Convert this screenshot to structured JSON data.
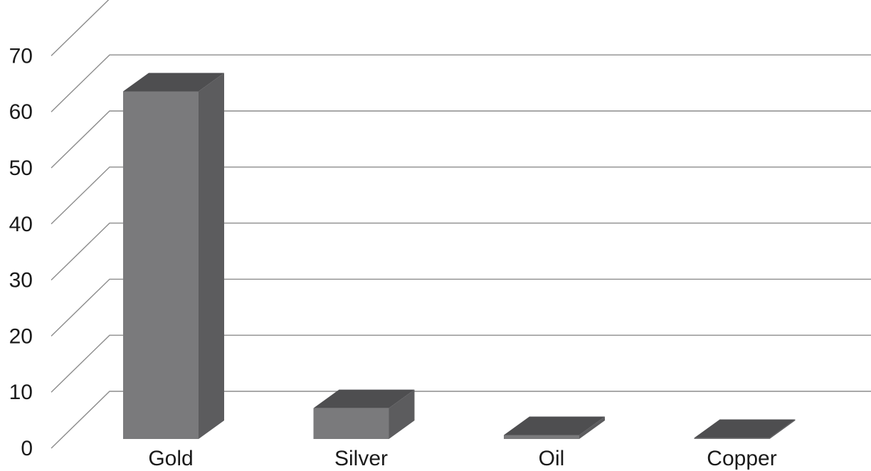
{
  "chart_data": {
    "type": "bar",
    "style": "3d",
    "categories": [
      "Gold",
      "Silver",
      "Oil",
      "Copper"
    ],
    "values": [
      62,
      5.5,
      0.7,
      0.1
    ],
    "yticks": [
      "0",
      "10",
      "20",
      "30",
      "40",
      "50",
      "60",
      "70"
    ],
    "ylim": [
      0,
      70
    ],
    "grid": true,
    "colors": {
      "bar_front": "#7a7a7c",
      "bar_side": "#5c5c5e",
      "bar_top": "#4e4e50",
      "grid": "#8c8c8c"
    }
  }
}
